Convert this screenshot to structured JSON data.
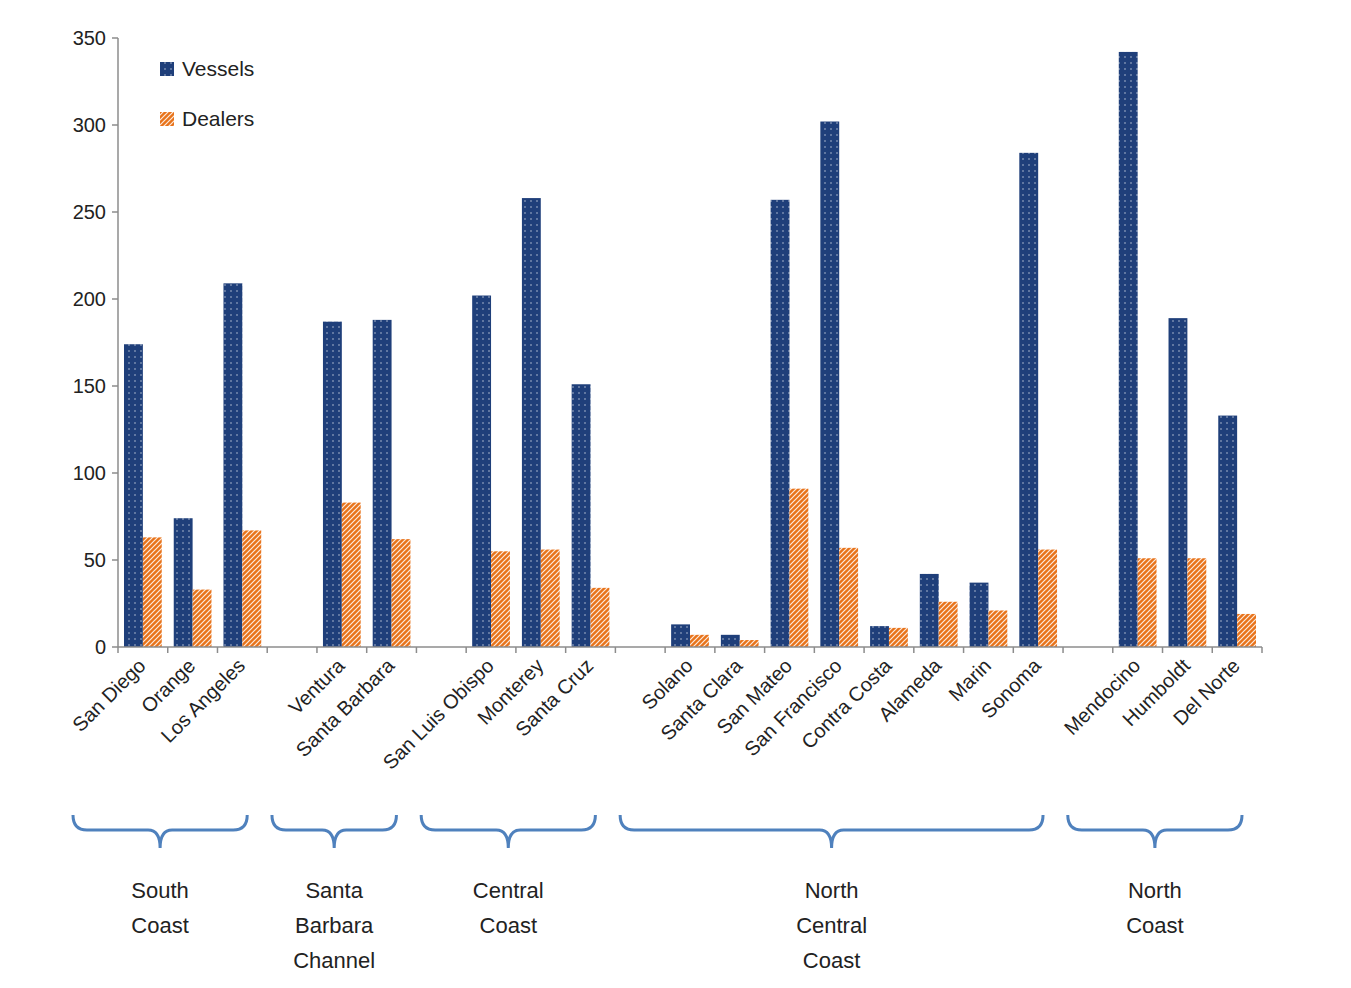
{
  "chart_data": {
    "type": "bar",
    "categories": [
      "San Diego",
      "Orange",
      "Los Angeles",
      "Ventura",
      "Santa Barbara",
      "San Luis Obispo",
      "Monterey",
      "Santa Cruz",
      "Solano",
      "Santa Clara",
      "San Mateo",
      "San Francisco",
      "Contra Costa",
      "Alameda",
      "Marin",
      "Sonoma",
      "Mendocino",
      "Humboldt",
      "Del Norte"
    ],
    "series": [
      {
        "name": "Vessels",
        "color": "#1f3f7a",
        "values": [
          174,
          74,
          209,
          187,
          188,
          202,
          258,
          151,
          13,
          7,
          257,
          302,
          12,
          42,
          37,
          284,
          342,
          189,
          133
        ]
      },
      {
        "name": "Dealers",
        "color": "#e8731a",
        "values": [
          63,
          33,
          67,
          83,
          62,
          55,
          56,
          34,
          7,
          4,
          91,
          57,
          11,
          26,
          21,
          56,
          51,
          51,
          19
        ]
      }
    ],
    "groups": [
      {
        "label": "South Coast",
        "count": 3
      },
      {
        "label": "Santa Barbara Channel",
        "count": 2
      },
      {
        "label": "Central Coast",
        "count": 3
      },
      {
        "label": "North Central Coast",
        "count": 8
      },
      {
        "label": "North Coast",
        "count": 3
      }
    ],
    "ylim": [
      0,
      350
    ],
    "yticks": [
      0,
      50,
      100,
      150,
      200,
      250,
      300,
      350
    ],
    "grid": false,
    "legend": "upper left"
  }
}
